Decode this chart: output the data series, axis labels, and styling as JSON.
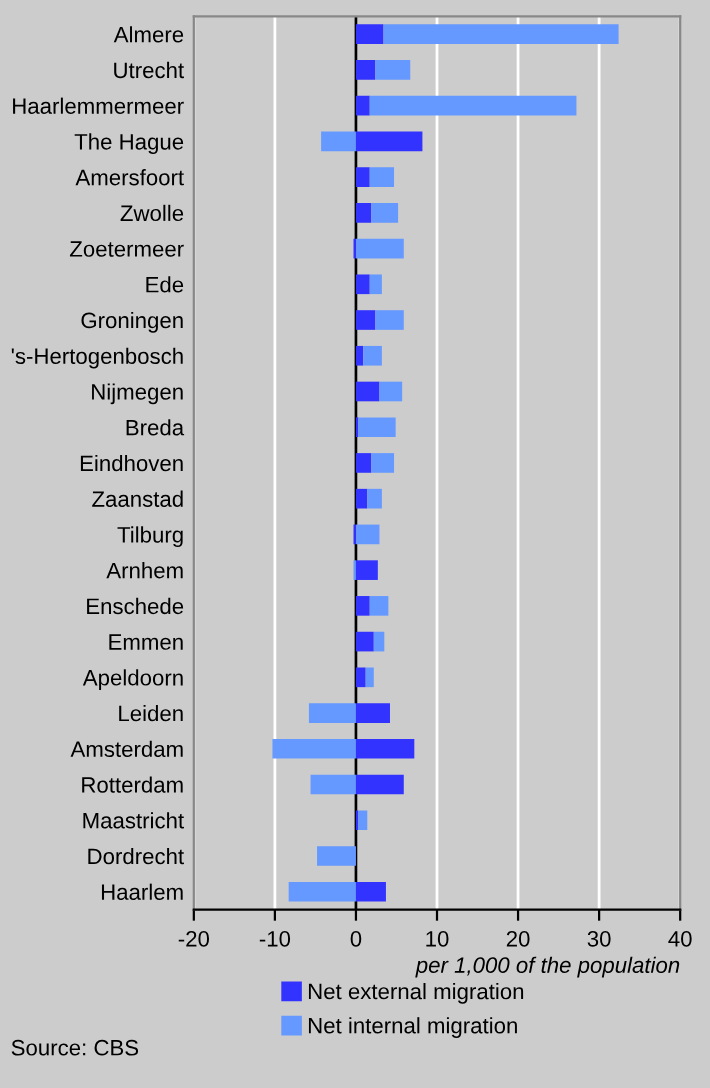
{
  "chart_data": {
    "type": "bar",
    "orientation": "horizontal",
    "stacked": true,
    "categories": [
      "Almere",
      "Utrecht",
      "Haarlemmermeer",
      "The Hague",
      "Amersfoort",
      "Zwolle",
      "Zoetermeer",
      "Ede",
      "Groningen",
      "'s-Hertogenbosch",
      "Nijmegen",
      "Breda",
      "Eindhoven",
      "Zaanstad",
      "Tilburg",
      "Arnhem",
      "Enschede",
      "Emmen",
      "Apeldoorn",
      "Leiden",
      "Amsterdam",
      "Rotterdam",
      "Maastricht",
      "Dordrecht",
      "Haarlem"
    ],
    "series": [
      {
        "name": "Net external migration",
        "color": "#3333ff",
        "values": [
          3.4,
          2.4,
          1.7,
          8.2,
          1.7,
          1.9,
          -0.3,
          1.7,
          2.4,
          0.9,
          2.9,
          0.3,
          1.9,
          1.4,
          -0.3,
          2.7,
          1.7,
          2.2,
          1.2,
          4.2,
          7.2,
          5.9,
          0.3,
          0,
          3.7
        ]
      },
      {
        "name": "Net internal migration",
        "color": "#6699ff",
        "values": [
          29.0,
          4.3,
          25.5,
          -4.3,
          3.0,
          3.3,
          5.9,
          1.5,
          3.5,
          2.3,
          2.8,
          4.6,
          2.8,
          1.8,
          2.9,
          -0.3,
          2.3,
          1.3,
          1.0,
          -5.8,
          -10.3,
          -5.6,
          1.1,
          -4.8,
          -8.3
        ]
      }
    ],
    "xlim": [
      -20,
      40
    ],
    "xticks": [
      -20,
      -10,
      0,
      10,
      20,
      30,
      40
    ],
    "xlabel": "per 1,000 of the population",
    "grid": "x",
    "legend": "bottom",
    "annotations": [
      "Source: CBS"
    ]
  }
}
